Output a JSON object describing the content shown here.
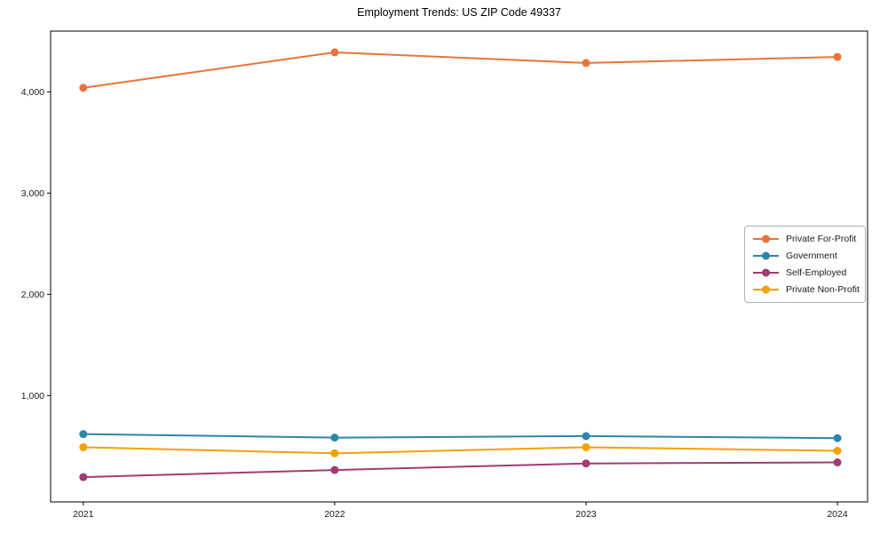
{
  "chart_data": {
    "type": "line",
    "title": "Employment Trends: US ZIP Code 49337",
    "xlabel": "",
    "ylabel": "",
    "x": [
      2021,
      2022,
      2023,
      2024
    ],
    "x_tick_labels": [
      "2021",
      "2022",
      "2023",
      "2024"
    ],
    "series": [
      {
        "name": "Private For-Profit",
        "color": "#E8743B",
        "values": [
          4040,
          4390,
          4285,
          4345
        ]
      },
      {
        "name": "Government",
        "color": "#2E86AB",
        "values": [
          620,
          585,
          600,
          580
        ]
      },
      {
        "name": "Self-Employed",
        "color": "#A23B72",
        "values": [
          195,
          265,
          330,
          340
        ]
      },
      {
        "name": "Private Non-Profit",
        "color": "#F2A104",
        "values": [
          490,
          430,
          490,
          455
        ]
      }
    ],
    "yticks": [
      {
        "value": 1000,
        "label": "1,000"
      },
      {
        "value": 2000,
        "label": "2,000"
      },
      {
        "value": 3000,
        "label": "3,000"
      },
      {
        "value": 4000,
        "label": "4,000"
      }
    ],
    "xlim": [
      2020.87,
      2024.12
    ],
    "ylim": [
      -50,
      4600
    ],
    "grid": false,
    "legend_position": "center-right",
    "frame_color": "#000000"
  }
}
